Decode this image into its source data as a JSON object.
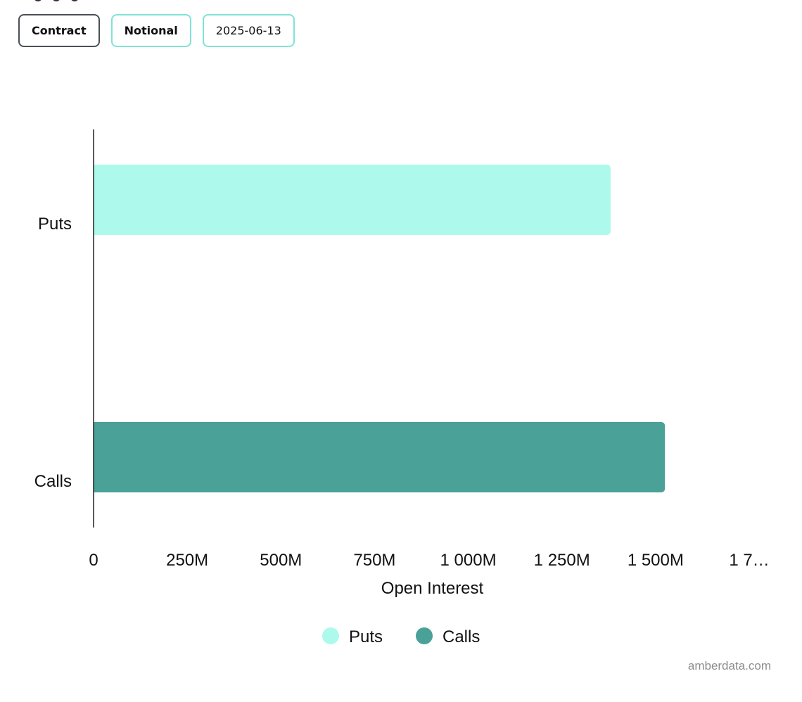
{
  "toolbar": {
    "contract_label": "Contract",
    "notional_label": "Notional",
    "date_label": "2025-06-13"
  },
  "colors": {
    "puts": "#adfaed",
    "calls": "#4aa198",
    "axis": "#222222",
    "active_border": "#4b4f56",
    "button_border": "#7fe3d6"
  },
  "chart_data": {
    "type": "bar",
    "orientation": "horizontal",
    "categories": [
      "Puts",
      "Calls"
    ],
    "values": [
      1380000000,
      1525000000
    ],
    "xlabel": "Open Interest",
    "xlim": [
      0,
      1750000000
    ],
    "x_ticks": [
      0,
      250000000,
      500000000,
      750000000,
      1000000000,
      1250000000,
      1500000000,
      1750000000
    ],
    "x_tick_labels": [
      "0",
      "250M",
      "500M",
      "750M",
      "1 000M",
      "1 250M",
      "1 500M",
      "1 7…"
    ],
    "legend": [
      {
        "name": "Puts",
        "color": "#adfaed"
      },
      {
        "name": "Calls",
        "color": "#4aa198"
      }
    ],
    "legend_position": "bottom",
    "grid": false
  },
  "footer": {
    "watermark": "amberdata.com"
  }
}
